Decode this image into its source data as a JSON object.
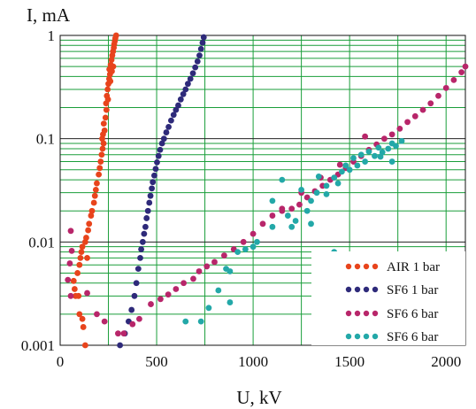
{
  "chart_data": {
    "type": "scatter",
    "title": "",
    "xlabel": "U, kV",
    "ylabel": "I, mA",
    "xlim": [
      0,
      2100
    ],
    "ylim": [
      0.001,
      1
    ],
    "yscale": "log",
    "grid": true,
    "grid_color": "#1a9e3a",
    "legend_position": "bottom-right",
    "x_ticks": [
      {
        "value": 0,
        "label": "0"
      },
      {
        "value": 500,
        "label": "500"
      },
      {
        "value": 1000,
        "label": "1000"
      },
      {
        "value": 1500,
        "label": "1500"
      },
      {
        "value": 2000,
        "label": "2000"
      }
    ],
    "x_minor_ticks": [
      250,
      750,
      1250,
      1750
    ],
    "y_ticks": [
      {
        "value": 0.001,
        "label": "0.001"
      },
      {
        "value": 0.01,
        "label": "0.01"
      },
      {
        "value": 0.1,
        "label": "0.1"
      },
      {
        "value": 1,
        "label": "1"
      }
    ],
    "series": [
      {
        "name": "AIR 1 bar",
        "color": "#e8441c",
        "points": [
          [
            130,
            0.001
          ],
          [
            120,
            0.0015
          ],
          [
            100,
            0.002
          ],
          [
            115,
            0.0018
          ],
          [
            80,
            0.003
          ],
          [
            75,
            0.0035
          ],
          [
            70,
            0.0042
          ],
          [
            95,
            0.003
          ],
          [
            90,
            0.005
          ],
          [
            100,
            0.006
          ],
          [
            105,
            0.007
          ],
          [
            110,
            0.008
          ],
          [
            115,
            0.009
          ],
          [
            140,
            0.007
          ],
          [
            130,
            0.01
          ],
          [
            135,
            0.011
          ],
          [
            145,
            0.013
          ],
          [
            150,
            0.015
          ],
          [
            160,
            0.018
          ],
          [
            165,
            0.02
          ],
          [
            175,
            0.024
          ],
          [
            180,
            0.028
          ],
          [
            185,
            0.032
          ],
          [
            190,
            0.037
          ],
          [
            200,
            0.045
          ],
          [
            205,
            0.052
          ],
          [
            210,
            0.06
          ],
          [
            215,
            0.07
          ],
          [
            220,
            0.08
          ],
          [
            225,
            0.09
          ],
          [
            218,
            0.1
          ],
          [
            222,
            0.11
          ],
          [
            230,
            0.12
          ],
          [
            226,
            0.14
          ],
          [
            235,
            0.16
          ],
          [
            240,
            0.19
          ],
          [
            238,
            0.22
          ],
          [
            242,
            0.26
          ],
          [
            246,
            0.3
          ],
          [
            250,
            0.34
          ],
          [
            254,
            0.38
          ],
          [
            258,
            0.42
          ],
          [
            255,
            0.47
          ],
          [
            262,
            0.52
          ],
          [
            266,
            0.58
          ],
          [
            270,
            0.64
          ],
          [
            274,
            0.7
          ],
          [
            278,
            0.76
          ],
          [
            280,
            0.82
          ],
          [
            283,
            0.88
          ],
          [
            286,
            0.94
          ],
          [
            290,
            1.0
          ],
          [
            275,
            0.5
          ],
          [
            268,
            0.45
          ],
          [
            260,
            0.36
          ],
          [
            248,
            0.24
          ]
        ]
      },
      {
        "name": "SF6 1 bar",
        "color": "#2e2a7a",
        "points": [
          [
            310,
            0.001
          ],
          [
            335,
            0.0013
          ],
          [
            355,
            0.0017
          ],
          [
            370,
            0.0022
          ],
          [
            385,
            0.003
          ],
          [
            395,
            0.004
          ],
          [
            405,
            0.0055
          ],
          [
            415,
            0.007
          ],
          [
            420,
            0.0085
          ],
          [
            428,
            0.01
          ],
          [
            435,
            0.012
          ],
          [
            442,
            0.014
          ],
          [
            448,
            0.017
          ],
          [
            455,
            0.02
          ],
          [
            462,
            0.024
          ],
          [
            468,
            0.028
          ],
          [
            475,
            0.033
          ],
          [
            480,
            0.038
          ],
          [
            488,
            0.044
          ],
          [
            495,
            0.051
          ],
          [
            502,
            0.059
          ],
          [
            510,
            0.068
          ],
          [
            518,
            0.078
          ],
          [
            528,
            0.09
          ],
          [
            538,
            0.1
          ],
          [
            550,
            0.115
          ],
          [
            562,
            0.13
          ],
          [
            575,
            0.15
          ],
          [
            588,
            0.17
          ],
          [
            600,
            0.19
          ],
          [
            612,
            0.21
          ],
          [
            625,
            0.24
          ],
          [
            638,
            0.27
          ],
          [
            650,
            0.3
          ],
          [
            662,
            0.34
          ],
          [
            675,
            0.38
          ],
          [
            688,
            0.43
          ],
          [
            700,
            0.49
          ],
          [
            712,
            0.56
          ],
          [
            722,
            0.64
          ],
          [
            730,
            0.74
          ],
          [
            738,
            0.85
          ],
          [
            744,
            0.96
          ]
        ]
      },
      {
        "name": "SF6 6 bar",
        "color": "#b8266a",
        "points": [
          [
            40,
            0.0043
          ],
          [
            55,
            0.003
          ],
          [
            50,
            0.0062
          ],
          [
            60,
            0.0082
          ],
          [
            55,
            0.0128
          ],
          [
            140,
            0.0032
          ],
          [
            190,
            0.002
          ],
          [
            230,
            0.0017
          ],
          [
            300,
            0.0013
          ],
          [
            330,
            0.0013
          ],
          [
            375,
            0.0016
          ],
          [
            410,
            0.0018
          ],
          [
            470,
            0.0025
          ],
          [
            520,
            0.0028
          ],
          [
            560,
            0.0031
          ],
          [
            600,
            0.0035
          ],
          [
            640,
            0.004
          ],
          [
            690,
            0.0044
          ],
          [
            720,
            0.0052
          ],
          [
            760,
            0.0058
          ],
          [
            800,
            0.0064
          ],
          [
            850,
            0.0074
          ],
          [
            900,
            0.0085
          ],
          [
            950,
            0.01
          ],
          [
            1000,
            0.012
          ],
          [
            1050,
            0.015
          ],
          [
            1100,
            0.018
          ],
          [
            1150,
            0.02
          ],
          [
            1200,
            0.021
          ],
          [
            1240,
            0.023
          ],
          [
            1280,
            0.027
          ],
          [
            1320,
            0.031
          ],
          [
            1360,
            0.035
          ],
          [
            1400,
            0.04
          ],
          [
            1440,
            0.045
          ],
          [
            1480,
            0.052
          ],
          [
            1520,
            0.06
          ],
          [
            1560,
            0.068
          ],
          [
            1600,
            0.078
          ],
          [
            1640,
            0.088
          ],
          [
            1680,
            0.1
          ],
          [
            1720,
            0.11
          ],
          [
            1760,
            0.125
          ],
          [
            1800,
            0.145
          ],
          [
            1840,
            0.165
          ],
          [
            1880,
            0.19
          ],
          [
            1920,
            0.22
          ],
          [
            1960,
            0.26
          ],
          [
            2000,
            0.31
          ],
          [
            2040,
            0.37
          ],
          [
            2080,
            0.44
          ],
          [
            2100,
            0.5
          ],
          [
            2120,
            0.56
          ],
          [
            1580,
            0.105
          ],
          [
            1450,
            0.056
          ],
          [
            1350,
            0.042
          ],
          [
            1250,
            0.03
          ],
          [
            1150,
            0.021
          ]
        ]
      },
      {
        "name": "SF6 6 bar",
        "color": "#23a8a8",
        "points": [
          [
            650,
            0.0017
          ],
          [
            730,
            0.0017
          ],
          [
            770,
            0.0023
          ],
          [
            820,
            0.0034
          ],
          [
            860,
            0.0055
          ],
          [
            880,
            0.0052
          ],
          [
            920,
            0.008
          ],
          [
            960,
            0.0085
          ],
          [
            1020,
            0.01
          ],
          [
            1100,
            0.014
          ],
          [
            1180,
            0.018
          ],
          [
            1220,
            0.016
          ],
          [
            1280,
            0.02
          ],
          [
            1300,
            0.025
          ],
          [
            1330,
            0.03
          ],
          [
            1380,
            0.035
          ],
          [
            1420,
            0.042
          ],
          [
            1440,
            0.037
          ],
          [
            1460,
            0.048
          ],
          [
            1480,
            0.055
          ],
          [
            1500,
            0.05
          ],
          [
            1520,
            0.065
          ],
          [
            1560,
            0.07
          ],
          [
            1580,
            0.06
          ],
          [
            1600,
            0.075
          ],
          [
            1630,
            0.068
          ],
          [
            1650,
            0.082
          ],
          [
            1670,
            0.074
          ],
          [
            1700,
            0.08
          ],
          [
            1720,
            0.09
          ],
          [
            1740,
            0.085
          ],
          [
            1770,
            0.095
          ],
          [
            1720,
            0.06
          ],
          [
            1660,
            0.067
          ],
          [
            1540,
            0.055
          ],
          [
            1380,
            0.029
          ],
          [
            1340,
            0.043
          ],
          [
            1250,
            0.032
          ],
          [
            1150,
            0.04
          ],
          [
            1200,
            0.014
          ],
          [
            1300,
            0.015
          ],
          [
            1420,
            0.008
          ],
          [
            1100,
            0.025
          ],
          [
            1000,
            0.009
          ],
          [
            880,
            0.0026
          ]
        ]
      }
    ]
  }
}
